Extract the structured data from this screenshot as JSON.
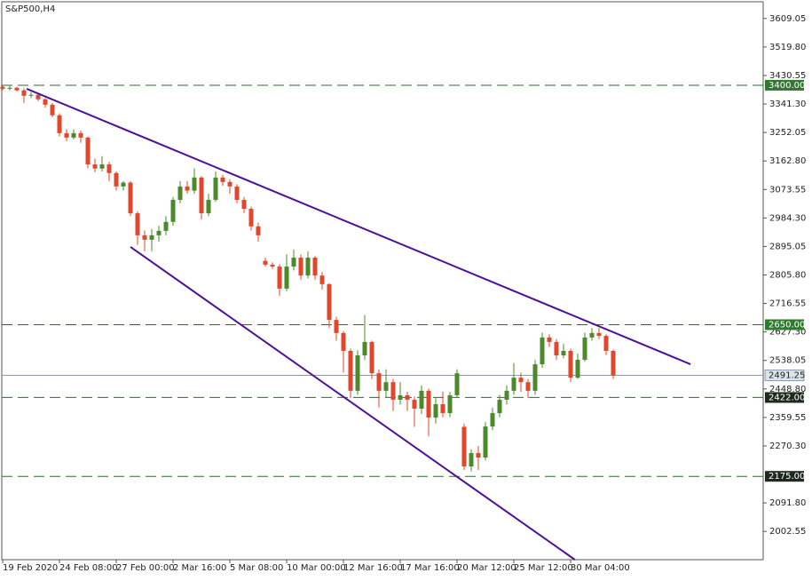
{
  "chart_data": {
    "type": "candlestick",
    "title": "S&P500,H4",
    "categories": [
      "19 Feb 2020",
      null,
      null,
      null,
      null,
      null,
      null,
      null,
      "24 Feb 08:00",
      null,
      null,
      null,
      null,
      null,
      null,
      null,
      "27 Feb 00:00",
      null,
      null,
      null,
      null,
      null,
      null,
      null,
      "2 Mar 16:00",
      null,
      null,
      null,
      null,
      null,
      null,
      null,
      "5 Mar 08:00",
      null,
      null,
      null,
      null,
      null,
      null,
      null,
      "10 Mar 00:00",
      null,
      null,
      null,
      null,
      null,
      null,
      null,
      "12 Mar 16:00",
      null,
      null,
      null,
      null,
      null,
      null,
      null,
      "17 Mar 16:00",
      null,
      null,
      null,
      null,
      null,
      null,
      null,
      "20 Mar 12:00",
      null,
      null,
      null,
      null,
      null,
      null,
      null,
      "25 Mar 12:00",
      null,
      null,
      null,
      null,
      null,
      null,
      null,
      "30 Mar 04:00",
      null,
      null,
      null,
      null,
      null,
      null
    ],
    "ohlc": [
      [
        3395,
        3400,
        3385,
        3389
      ],
      [
        3389,
        3398,
        3384,
        3392
      ],
      [
        3392,
        3395,
        3380,
        3384
      ],
      [
        3384,
        3390,
        3345,
        3367
      ],
      [
        3367,
        3378,
        3360,
        3370
      ],
      [
        3370,
        3374,
        3350,
        3356
      ],
      [
        3356,
        3360,
        3330,
        3339
      ],
      [
        3339,
        3345,
        3300,
        3306
      ],
      [
        3306,
        3312,
        3240,
        3250
      ],
      [
        3250,
        3262,
        3225,
        3236
      ],
      [
        3236,
        3262,
        3230,
        3250
      ],
      [
        3250,
        3258,
        3220,
        3236
      ],
      [
        3236,
        3240,
        3140,
        3152
      ],
      [
        3152,
        3170,
        3128,
        3139
      ],
      [
        3139,
        3178,
        3130,
        3152
      ],
      [
        3152,
        3160,
        3100,
        3125
      ],
      [
        3125,
        3130,
        3070,
        3083
      ],
      [
        3083,
        3100,
        3070,
        3095
      ],
      [
        3095,
        3100,
        2990,
        2999
      ],
      [
        2999,
        3005,
        2900,
        2930
      ],
      [
        2930,
        2945,
        2880,
        2916
      ],
      [
        2916,
        2950,
        2880,
        2930
      ],
      [
        2930,
        2960,
        2910,
        2944
      ],
      [
        2944,
        2990,
        2930,
        2972
      ],
      [
        2972,
        3050,
        2960,
        3041
      ],
      [
        3041,
        3100,
        3030,
        3083
      ],
      [
        3083,
        3100,
        3060,
        3070
      ],
      [
        3070,
        3140,
        3060,
        3111
      ],
      [
        3111,
        3115,
        2980,
        2999
      ],
      [
        2999,
        3060,
        2990,
        3041
      ],
      [
        3041,
        3130,
        3035,
        3111
      ],
      [
        3111,
        3120,
        3085,
        3097
      ],
      [
        3097,
        3105,
        3060,
        3083
      ],
      [
        3083,
        3090,
        3030,
        3041
      ],
      [
        3041,
        3050,
        3000,
        3013
      ],
      [
        3013,
        3020,
        2945,
        2958
      ],
      [
        2958,
        2970,
        2910,
        2930
      ],
      [
        2850,
        2860,
        2832,
        2838
      ],
      [
        2838,
        2845,
        2825,
        2832
      ],
      [
        2832,
        2840,
        2740,
        2763
      ],
      [
        2763,
        2870,
        2755,
        2832
      ],
      [
        2832,
        2885,
        2820,
        2860
      ],
      [
        2860,
        2870,
        2790,
        2804
      ],
      [
        2804,
        2880,
        2795,
        2860
      ],
      [
        2860,
        2865,
        2790,
        2804
      ],
      [
        2804,
        2815,
        2760,
        2777
      ],
      [
        2777,
        2780,
        2640,
        2665
      ],
      [
        2665,
        2675,
        2600,
        2624
      ],
      [
        2624,
        2630,
        2500,
        2568
      ],
      [
        2568,
        2575,
        2420,
        2443
      ],
      [
        2443,
        2570,
        2430,
        2554
      ],
      [
        2554,
        2680,
        2540,
        2596
      ],
      [
        2596,
        2600,
        2480,
        2498
      ],
      [
        2498,
        2510,
        2390,
        2443
      ],
      [
        2443,
        2510,
        2420,
        2470
      ],
      [
        2470,
        2480,
        2380,
        2415
      ],
      [
        2415,
        2470,
        2400,
        2429
      ],
      [
        2429,
        2440,
        2380,
        2415
      ],
      [
        2415,
        2425,
        2330,
        2387
      ],
      [
        2387,
        2460,
        2370,
        2443
      ],
      [
        2443,
        2450,
        2300,
        2359
      ],
      [
        2359,
        2420,
        2340,
        2401
      ],
      [
        2401,
        2440,
        2360,
        2373
      ],
      [
        2373,
        2440,
        2360,
        2429
      ],
      [
        2429,
        2510,
        2420,
        2498
      ],
      [
        2330,
        2340,
        2195,
        2206
      ],
      [
        2206,
        2260,
        2190,
        2248
      ],
      [
        2248,
        2270,
        2195,
        2234
      ],
      [
        2234,
        2345,
        2225,
        2331
      ],
      [
        2331,
        2390,
        2320,
        2373
      ],
      [
        2373,
        2430,
        2360,
        2415
      ],
      [
        2415,
        2460,
        2400,
        2443
      ],
      [
        2443,
        2530,
        2430,
        2484
      ],
      [
        2484,
        2500,
        2440,
        2470
      ],
      [
        2470,
        2480,
        2420,
        2443
      ],
      [
        2443,
        2540,
        2430,
        2526
      ],
      [
        2526,
        2625,
        2515,
        2610
      ],
      [
        2610,
        2620,
        2580,
        2596
      ],
      [
        2596,
        2605,
        2540,
        2554
      ],
      [
        2554,
        2590,
        2545,
        2568
      ],
      [
        2568,
        2575,
        2470,
        2484
      ],
      [
        2484,
        2560,
        2480,
        2540
      ],
      [
        2540,
        2625,
        2535,
        2610
      ],
      [
        2610,
        2640,
        2600,
        2624
      ],
      [
        2624,
        2640,
        2605,
        2615
      ],
      [
        2615,
        2620,
        2555,
        2568
      ],
      [
        2568,
        2572,
        2480,
        2491.25
      ]
    ],
    "up_color": "#4a8a2a",
    "down_color": "#e2472b",
    "xlim": [
      -0.375,
      107.125
    ],
    "ylim": [
      1914,
      3667
    ],
    "yticks": [
      3609.05,
      {
        "value": 3519.8,
        "label": "3519.80"
      },
      3430.55,
      {
        "value": 3341.3,
        "label": "3341.30"
      },
      3252.05,
      {
        "value": 3162.8,
        "label": "3162.80"
      },
      3073.55,
      {
        "value": 2984.3,
        "label": "2984.30"
      },
      2895.05,
      {
        "value": 2805.8,
        "label": "2805.80"
      },
      2716.55,
      {
        "value": 2627.3,
        "label": "2627.30"
      },
      2538.05,
      {
        "value": 2448.8,
        "label": "2448.80"
      },
      2359.55,
      {
        "value": 2270.3,
        "label": "2270.30"
      },
      {
        "value": 2091.8,
        "label": "2091.80"
      },
      2002.55
    ],
    "levels": {
      "values": [
        3400,
        2650,
        2422,
        2175
      ],
      "value_labels": [
        "3400.00",
        "2650.00",
        "2422.00",
        "2175.00"
      ],
      "colors": [
        "#2f7a2f",
        "#2f7a2f",
        "#1e2a1e",
        "#1e2a1e"
      ],
      "line_color": "#2e6b2e"
    },
    "last_price": 2491.25,
    "trendlines": {
      "color": "#4b1199",
      "lines": [
        {
          "x": [
            3.375,
            96.9
          ],
          "y": [
            3389,
            2526
          ]
        },
        {
          "x": [
            18,
            80.6
          ],
          "y": [
            2893.5,
            1914
          ]
        }
      ]
    }
  }
}
